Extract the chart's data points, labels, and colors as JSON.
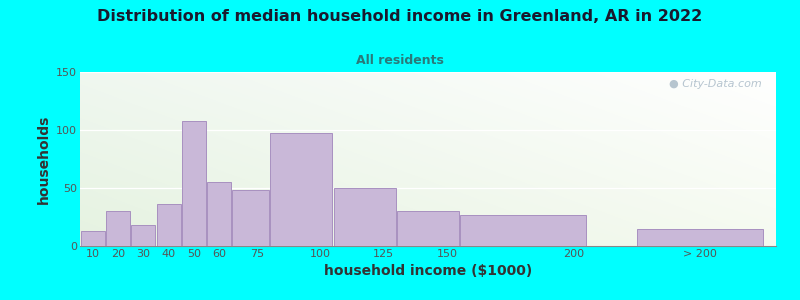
{
  "title": "Distribution of median household income in Greenland, AR in 2022",
  "subtitle": "All residents",
  "xlabel": "household income ($1000)",
  "ylabel": "households",
  "background_color": "#00FFFF",
  "plot_bg_topleft": "#e8f5e8",
  "plot_bg_topright": "#f0f8f8",
  "plot_bg_bottom": "#ddeedd",
  "bar_color": "#c9b8d8",
  "bar_edge_color": "#a890c0",
  "title_color": "#1a1a2e",
  "subtitle_color": "#2a7a7a",
  "axis_label_color": "#333333",
  "tick_label_color": "#555555",
  "watermark_color": "#aabbc8",
  "categories": [
    "10",
    "20",
    "30",
    "40",
    "50",
    "60",
    "75",
    "100",
    "125",
    "150",
    "200",
    "> 200"
  ],
  "values": [
    13,
    30,
    18,
    36,
    108,
    55,
    48,
    97,
    50,
    30,
    27,
    15
  ],
  "bar_widths": [
    10,
    10,
    10,
    10,
    10,
    10,
    15,
    25,
    25,
    25,
    50,
    50
  ],
  "bar_lefts": [
    5,
    15,
    25,
    35,
    45,
    55,
    65,
    80,
    105,
    130,
    155,
    225
  ],
  "xlim": [
    5,
    280
  ],
  "ylim": [
    0,
    150
  ],
  "yticks": [
    0,
    50,
    100,
    150
  ],
  "xtick_positions": [
    10,
    20,
    30,
    40,
    50,
    60,
    75,
    100,
    125,
    150,
    200,
    250
  ],
  "xtick_labels": [
    "10",
    "20",
    "30",
    "40",
    "50",
    "60",
    "75",
    "100",
    "125",
    "150",
    "200",
    "> 200"
  ]
}
